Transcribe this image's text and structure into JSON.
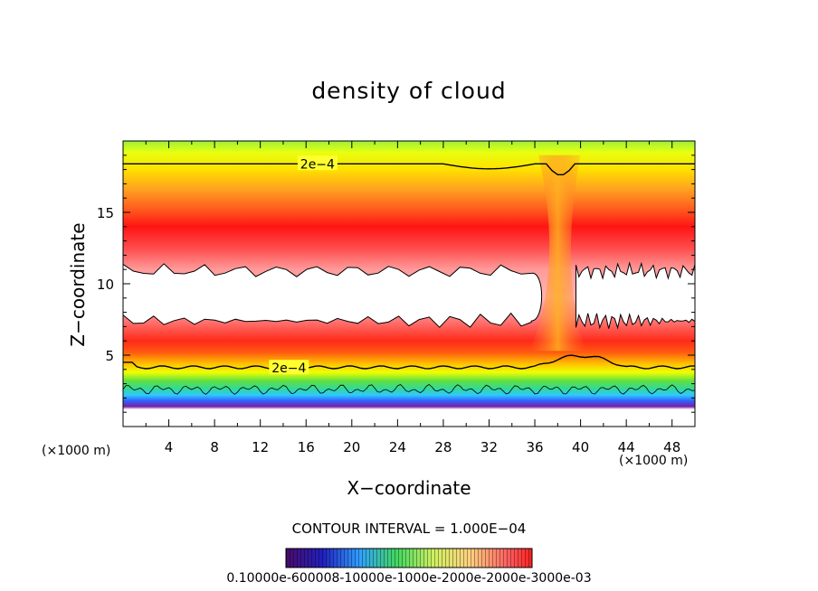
{
  "chart_data": {
    "type": "heatmap",
    "title": "density of cloud",
    "xlabel": "X−coordinate",
    "ylabel": "Z−coordinate",
    "x_unit_left": "(×1000 m)",
    "x_unit_right": "(×1000 m)",
    "xlim": [
      0,
      50
    ],
    "ylim": [
      0,
      20
    ],
    "x_ticks": [
      4,
      8,
      12,
      16,
      20,
      24,
      28,
      32,
      36,
      40,
      44,
      48
    ],
    "y_ticks": [
      5,
      10,
      15
    ],
    "contour_interval": "CONTOUR INTERVAL = 1.000E−04",
    "contour_labels": [
      {
        "text": "2e−4",
        "x": 17,
        "y": 18.4
      },
      {
        "text": "2e−4",
        "x": 14.5,
        "y": 4.1
      }
    ],
    "colorbar_labels": "0.10000e-600008-10000e-1000e-2000e-2000e-3000e-03",
    "colorbar_range": [
      0.0001,
      0.003
    ],
    "colors": {
      "low": "#7a1fa2",
      "mid_low": "#2fd4ff",
      "mid": "#3fd84a",
      "mid_high": "#ffff00",
      "high": "#ff1414",
      "blank": "#ffffff"
    }
  }
}
